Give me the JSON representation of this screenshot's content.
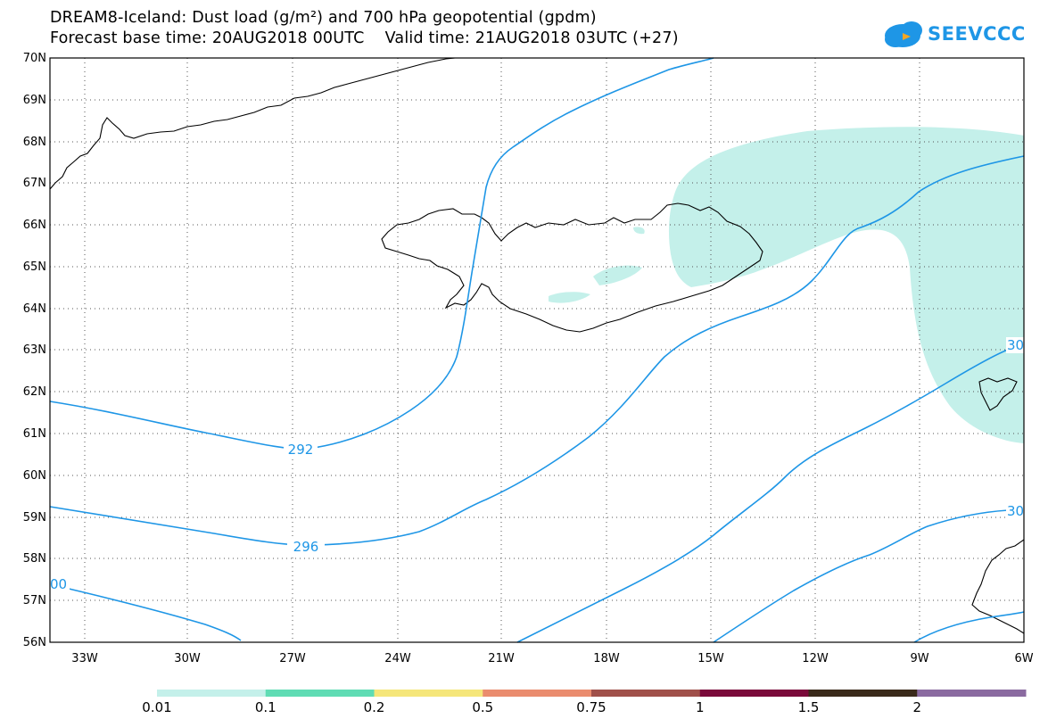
{
  "title_line1": "DREAM8-Iceland: Dust load (g/m²) and 700 hPa geopotential (gpdm)",
  "title_line2": "Forecast base time: 20AUG2018 00UTC    Valid time: 21AUG2018 03UTC (+27)",
  "logo_text": "SEEVCCC",
  "lat_labels": [
    "70N",
    "69N",
    "68N",
    "67N",
    "66N",
    "65N",
    "64N",
    "63N",
    "62N",
    "61N",
    "60N",
    "59N",
    "58N",
    "57N",
    "56N"
  ],
  "lon_labels": [
    "33W",
    "30W",
    "27W",
    "24W",
    "21W",
    "18W",
    "15W",
    "12W",
    "9W",
    "6W"
  ],
  "contour_labels": [
    "292",
    "296",
    "00",
    "30",
    "30"
  ],
  "colorbar": {
    "labels": [
      "0.01",
      "0.1",
      "0.2",
      "0.5",
      "0.75",
      "1",
      "1.5",
      "2"
    ],
    "colors": [
      "#c4f0ea",
      "#5fdcb4",
      "#f5e67a",
      "#ea8c6e",
      "#a0504a",
      "#7a0a3a",
      "#3a2a1a",
      "#8a6aa0"
    ]
  },
  "colors": {
    "dust_fill": "#c4f0ea",
    "contour": "#1e96e6",
    "coast": "#000000"
  }
}
